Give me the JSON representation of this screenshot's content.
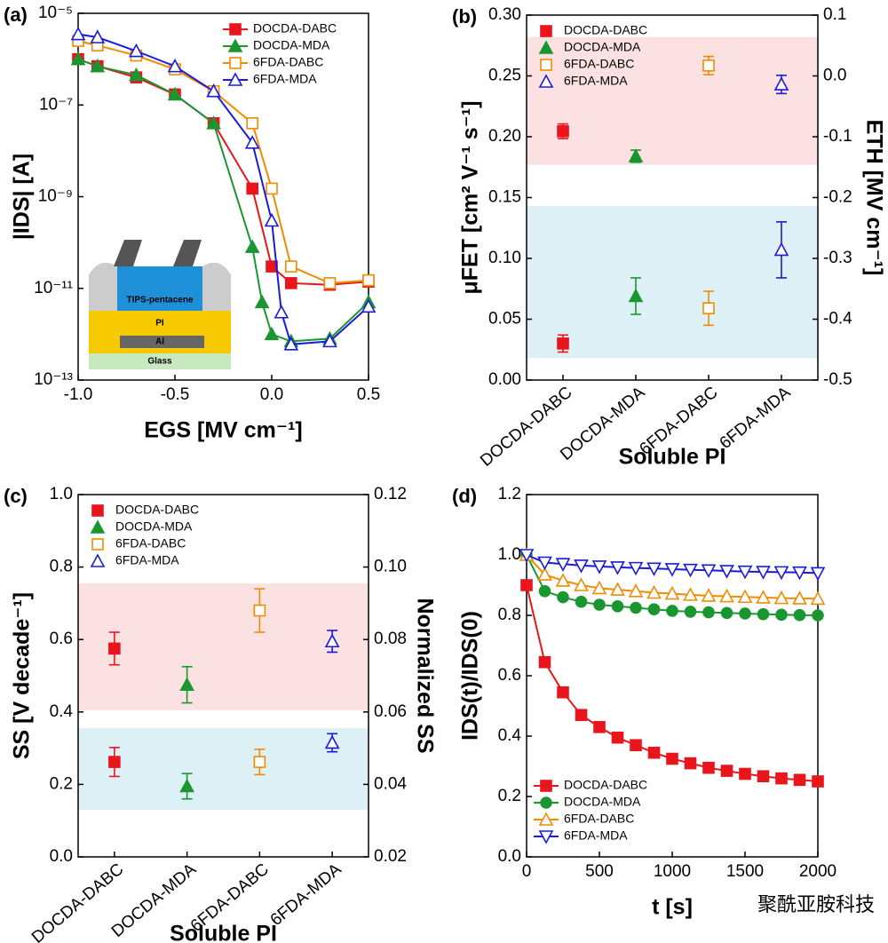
{
  "chart_data": [
    {
      "type": "line",
      "panel_label": "(a)",
      "x_label": "EGS [MV cm⁻¹]",
      "y_label": "|IDS| [A]",
      "log_y": true,
      "xlim": [
        -1,
        0.5
      ],
      "ylim": [
        1e-13,
        1e-05
      ],
      "xticks": [
        {
          "value": -1,
          "label": "-1.0"
        },
        -0.5,
        {
          "value": 0,
          "label": "0.0"
        },
        0.5
      ],
      "yticks": [
        {
          "value": 1e-13,
          "label": "10⁻¹³"
        },
        {
          "value": 1e-11,
          "label": "10⁻¹¹"
        },
        {
          "value": 1e-09,
          "label": "10⁻⁹"
        },
        {
          "value": 1e-07,
          "label": "10⁻⁷"
        },
        {
          "value": 1e-05,
          "label": "10⁻⁵"
        }
      ],
      "legend": "upper right",
      "inset_labels": [
        "TIPS-pentacene",
        "PI",
        "Al",
        "Glass"
      ],
      "series": [
        {
          "name": "DOCDA-DABC",
          "color": "#e8161c",
          "marker": "square",
          "x": [
            -1,
            -0.9,
            -0.7,
            -0.5,
            -0.3,
            -0.1,
            0,
            0.1,
            0.3,
            0.5
          ],
          "values": [
            1e-06,
            7e-07,
            4e-07,
            1.7e-07,
            4e-08,
            1.5e-09,
            3e-11,
            1.3e-11,
            1.2e-11,
            1.4e-11
          ]
        },
        {
          "name": "DOCDA-MDA",
          "color": "#1a9631",
          "marker": "triangle",
          "x": [
            -1,
            -0.9,
            -0.7,
            -0.5,
            -0.3,
            -0.1,
            -0.05,
            0,
            0.1,
            0.3,
            0.5
          ],
          "values": [
            1e-06,
            7e-07,
            4.5e-07,
            1.7e-07,
            4e-08,
            8e-11,
            5e-12,
            1e-12,
            7e-13,
            8e-13,
            5e-12
          ]
        },
        {
          "name": "6FDA-DABC",
          "color": "#f08c00",
          "marker": "square-open",
          "x": [
            -1,
            -0.9,
            -0.7,
            -0.5,
            -0.3,
            -0.1,
            0,
            0.1,
            0.3,
            0.5
          ],
          "values": [
            2.5e-06,
            2e-06,
            1.2e-06,
            6e-07,
            2e-07,
            4e-08,
            1.5e-09,
            3e-11,
            1.3e-11,
            1.5e-11
          ]
        },
        {
          "name": "6FDA-MDA",
          "color": "#1a1adc",
          "marker": "triangle-open",
          "x": [
            -1,
            -0.9,
            -0.7,
            -0.5,
            -0.3,
            -0.1,
            0,
            0.05,
            0.1,
            0.3,
            0.5
          ],
          "values": [
            3.5e-06,
            3e-06,
            1.5e-06,
            7e-07,
            2e-07,
            1.5e-08,
            3e-10,
            3e-12,
            6e-13,
            7e-13,
            4e-12
          ]
        }
      ]
    },
    {
      "type": "scatter",
      "panel_label": "(b)",
      "x_label": "Soluble PI",
      "y_label": "μFET [cm² V⁻¹ s⁻¹]",
      "y2_label": "ETH [MV cm⁻¹]",
      "categories": [
        "DOCDA-DABC",
        "DOCDA-MDA",
        "6FDA-DABC",
        "6FDA-MDA"
      ],
      "ylim": [
        0,
        0.3
      ],
      "yticks": [
        {
          "value": 0,
          "label": "0.00"
        },
        0.05,
        {
          "value": 0.1,
          "label": "0.10"
        },
        0.15,
        {
          "value": 0.2,
          "label": "0.20"
        },
        0.25,
        {
          "value": 0.3,
          "label": "0.30"
        }
      ],
      "y2lim": [
        -0.5,
        0.1
      ],
      "y2ticks": [
        -0.5,
        -0.4,
        -0.3,
        -0.2,
        -0.1,
        {
          "value": 0,
          "label": "0.0"
        },
        0.1
      ],
      "legend": "upper left",
      "bands": [
        {
          "from": 0.177,
          "to": 0.282,
          "color": "#fbe1e1"
        },
        {
          "from": 0.018,
          "to": 0.143,
          "color": "#dcf0f5"
        }
      ],
      "series": [
        {
          "name": "DOCDA-DABC",
          "color": "#e8161c",
          "marker": "square",
          "values": [
            0.03,
            null,
            null,
            null
          ],
          "errors": [
            0.007,
            null,
            null,
            null
          ],
          "y2_values": [
            -0.091,
            null,
            null,
            null
          ],
          "y2_errors": [
            0.012,
            null,
            null,
            null
          ]
        },
        {
          "name": "DOCDA-MDA",
          "color": "#1a9631",
          "marker": "triangle",
          "values": [
            null,
            0.069,
            null,
            null
          ],
          "errors": [
            null,
            0.015,
            null,
            null
          ],
          "y2_values": [
            null,
            -0.132,
            null,
            null
          ],
          "y2_errors": [
            null,
            0.01,
            null,
            null
          ]
        },
        {
          "name": "6FDA-DABC",
          "color": "#f08c00",
          "marker": "square-open",
          "values": [
            null,
            null,
            0.059,
            null
          ],
          "errors": [
            null,
            null,
            0.014,
            null
          ],
          "y2_values": [
            null,
            null,
            0.017,
            null
          ],
          "y2_errors": [
            null,
            null,
            0.015,
            null
          ]
        },
        {
          "name": "6FDA-MDA",
          "color": "#1a1adc",
          "marker": "triangle-open",
          "values": [
            null,
            null,
            null,
            0.107
          ],
          "errors": [
            null,
            null,
            null,
            0.023
          ],
          "y2_values": [
            null,
            null,
            null,
            -0.014
          ],
          "y2_errors": [
            null,
            null,
            null,
            0.015
          ]
        }
      ]
    },
    {
      "type": "scatter",
      "panel_label": "(c)",
      "x_label": "Soluble PI",
      "y_label": "SS [V decade⁻¹]",
      "y2_label": "Normalized SS",
      "categories": [
        "DOCDA-DABC",
        "DOCDA-MDA",
        "6FDA-DABC",
        "6FDA-MDA"
      ],
      "ylim": [
        0,
        1
      ],
      "yticks": [
        {
          "value": 0,
          "label": "0.0"
        },
        0.2,
        0.4,
        0.6,
        0.8,
        {
          "value": 1,
          "label": "1.0"
        }
      ],
      "y2lim": [
        0.02,
        0.12
      ],
      "y2ticks": [
        0.02,
        0.04,
        0.06,
        0.08,
        {
          "value": 0.1,
          "label": "0.10"
        },
        0.12
      ],
      "legend": "upper left",
      "bands": [
        {
          "from": 0.405,
          "to": 0.755,
          "color": "#fbe1e1"
        },
        {
          "from": 0.13,
          "to": 0.355,
          "color": "#dcf0f5"
        }
      ],
      "series": [
        {
          "name": "DOCDA-DABC",
          "color": "#e8161c",
          "marker": "square",
          "values": [
            0.575,
            null,
            null,
            null
          ],
          "errors": [
            0.045,
            null,
            null,
            null
          ],
          "y2_values": [
            0.0462,
            null,
            null,
            null
          ],
          "y2_errors": [
            0.004,
            null,
            null,
            null
          ]
        },
        {
          "name": "DOCDA-MDA",
          "color": "#1a9631",
          "marker": "triangle",
          "values": [
            null,
            0.475,
            null,
            null
          ],
          "errors": [
            null,
            0.05,
            null,
            null
          ],
          "y2_values": [
            null,
            0.0395,
            null,
            null
          ],
          "y2_errors": [
            null,
            0.0035,
            null,
            null
          ]
        },
        {
          "name": "6FDA-DABC",
          "color": "#f08c00",
          "marker": "square-open",
          "values": [
            null,
            null,
            0.68,
            null
          ],
          "errors": [
            null,
            null,
            0.06,
            null
          ],
          "y2_values": [
            null,
            null,
            0.0462,
            null
          ],
          "y2_errors": [
            null,
            null,
            0.0035,
            null
          ]
        },
        {
          "name": "6FDA-MDA",
          "color": "#1a1adc",
          "marker": "triangle-open",
          "values": [
            null,
            null,
            null,
            0.595
          ],
          "errors": [
            null,
            null,
            null,
            0.03
          ],
          "y2_values": [
            null,
            null,
            null,
            0.0515
          ],
          "y2_errors": [
            null,
            null,
            null,
            0.0025
          ]
        }
      ]
    },
    {
      "type": "line",
      "panel_label": "(d)",
      "x_label": "t [s]",
      "y_label": "IDS(t)/IDS(0)",
      "xlim": [
        0,
        2000
      ],
      "ylim": [
        0,
        1.2
      ],
      "xticks": [
        0,
        500,
        1000,
        1500,
        2000
      ],
      "yticks": [
        {
          "value": 0,
          "label": "0.0"
        },
        0.2,
        0.4,
        0.6,
        0.8,
        {
          "value": 1,
          "label": "1.0"
        },
        1.2
      ],
      "legend": "lower left",
      "series": [
        {
          "name": "DOCDA-DABC",
          "color": "#e8161c",
          "marker": "square",
          "x": [
            0,
            125,
            250,
            375,
            500,
            625,
            750,
            875,
            1000,
            1125,
            1250,
            1375,
            1500,
            1625,
            1750,
            1875,
            2000
          ],
          "values": [
            0.9,
            0.645,
            0.545,
            0.47,
            0.43,
            0.395,
            0.37,
            0.345,
            0.325,
            0.31,
            0.295,
            0.285,
            0.275,
            0.267,
            0.26,
            0.255,
            0.25
          ]
        },
        {
          "name": "DOCDA-MDA",
          "color": "#1a9631",
          "marker": "circle",
          "x": [
            0,
            125,
            250,
            375,
            500,
            625,
            750,
            875,
            1000,
            1125,
            1250,
            1375,
            1500,
            1625,
            1750,
            1875,
            2000
          ],
          "values": [
            1.0,
            0.88,
            0.86,
            0.845,
            0.835,
            0.83,
            0.825,
            0.82,
            0.815,
            0.812,
            0.81,
            0.808,
            0.806,
            0.804,
            0.802,
            0.801,
            0.8
          ]
        },
        {
          "name": "6FDA-DABC",
          "color": "#f08c00",
          "marker": "triangle-open",
          "x": [
            0,
            125,
            250,
            375,
            500,
            625,
            750,
            875,
            1000,
            1125,
            1250,
            1375,
            1500,
            1625,
            1750,
            1875,
            2000
          ],
          "values": [
            1.0,
            0.935,
            0.915,
            0.9,
            0.89,
            0.885,
            0.88,
            0.875,
            0.872,
            0.868,
            0.865,
            0.863,
            0.861,
            0.859,
            0.857,
            0.856,
            0.855
          ]
        },
        {
          "name": "6FDA-MDA",
          "color": "#1a1adc",
          "marker": "triangle-down-open",
          "x": [
            0,
            125,
            250,
            375,
            500,
            625,
            750,
            875,
            1000,
            1125,
            1250,
            1375,
            1500,
            1625,
            1750,
            1875,
            2000
          ],
          "values": [
            1.0,
            0.975,
            0.97,
            0.965,
            0.962,
            0.959,
            0.957,
            0.955,
            0.953,
            0.951,
            0.949,
            0.947,
            0.945,
            0.944,
            0.943,
            0.942,
            0.94
          ]
        }
      ]
    }
  ],
  "watermark": "聚酰亚胺科技"
}
